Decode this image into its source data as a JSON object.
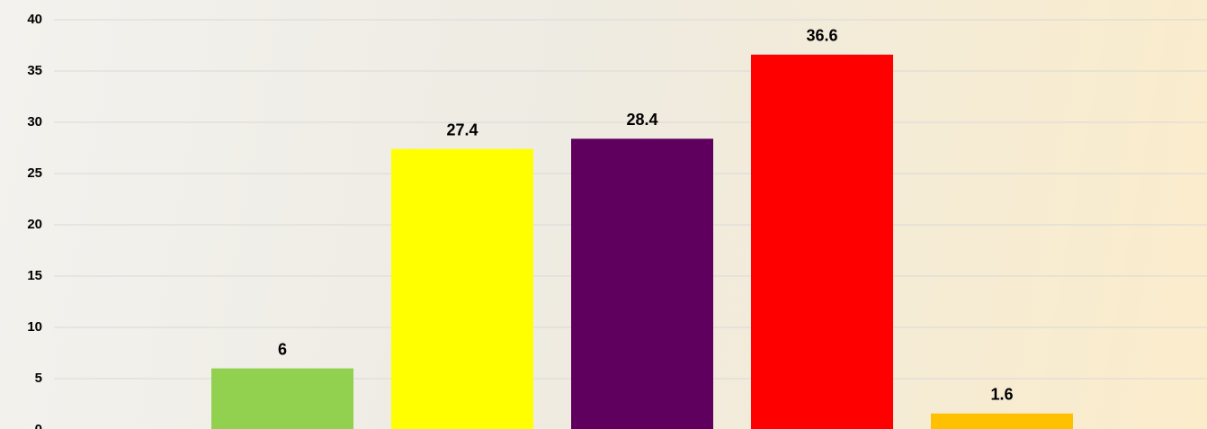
{
  "chart_data": {
    "type": "bar",
    "categories": [
      null,
      null,
      null,
      null,
      null
    ],
    "values": [
      6,
      27.4,
      28.4,
      36.6,
      1.6
    ],
    "colors": [
      "#92d050",
      "#ffff00",
      "#5f005f",
      "#ff0000",
      "#ffc000"
    ],
    "ylim": [
      0,
      40
    ],
    "yticks": [
      0,
      5,
      10,
      15,
      20,
      25,
      30,
      35,
      40
    ],
    "grid": true
  }
}
